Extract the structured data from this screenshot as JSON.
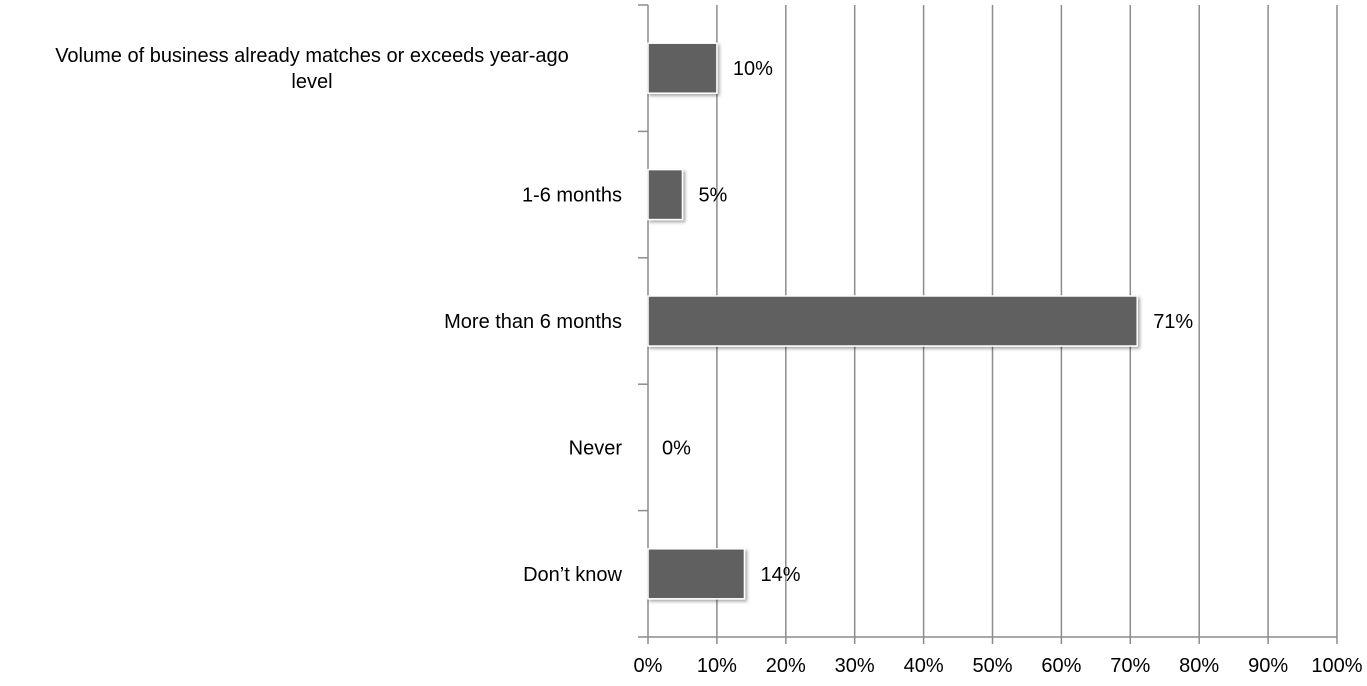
{
  "chart_data": {
    "type": "bar",
    "orientation": "horizontal",
    "categories": [
      [
        "Volume of business already matches or exceeds year-ago",
        "level"
      ],
      [
        "1-6 months"
      ],
      [
        "More than 6 months"
      ],
      [
        "Never"
      ],
      [
        "Don’t know"
      ]
    ],
    "values": [
      10,
      5,
      71,
      0,
      14
    ],
    "data_labels": [
      "10%",
      "5%",
      "71%",
      "0%",
      "14%"
    ],
    "xlim": [
      0,
      100
    ],
    "x_ticks": [
      0,
      10,
      20,
      30,
      40,
      50,
      60,
      70,
      80,
      90,
      100
    ],
    "x_tick_labels": [
      "0%",
      "10%",
      "20%",
      "30%",
      "40%",
      "50%",
      "60%",
      "70%",
      "80%",
      "90%",
      "100%"
    ],
    "grid": "vertical",
    "legend": "none",
    "bar_color": "#606060",
    "gridline_color": "#8c8c8c",
    "title": "",
    "xlabel": "",
    "ylabel": ""
  }
}
